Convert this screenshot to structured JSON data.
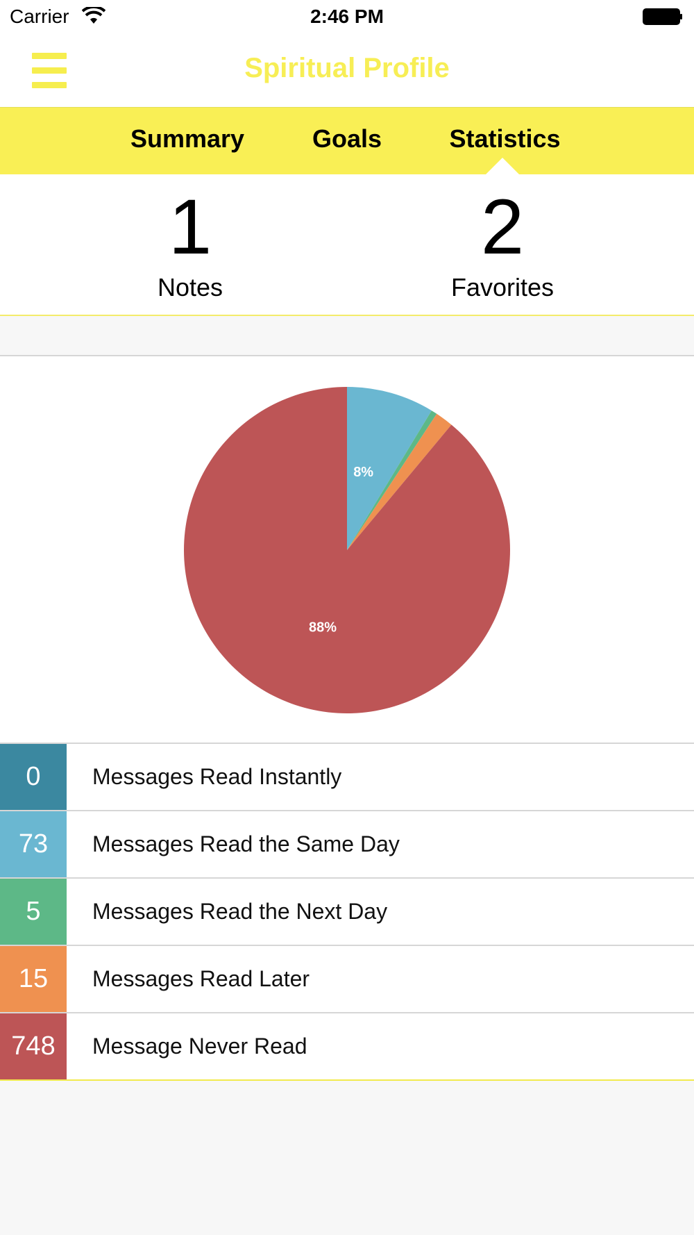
{
  "status_bar": {
    "carrier": "Carrier",
    "time": "2:46 PM",
    "wifi_icon": "wifi-icon",
    "battery_icon": "battery-icon"
  },
  "nav": {
    "title": "Spiritual Profile",
    "menu_icon": "hamburger-menu-icon",
    "title_color": "#f7ee55"
  },
  "tabs": [
    {
      "label": "Summary",
      "selected": false
    },
    {
      "label": "Goals",
      "selected": false
    },
    {
      "label": "Statistics",
      "selected": true
    }
  ],
  "counts": {
    "notes": {
      "value": "1",
      "label": "Notes"
    },
    "favorites": {
      "value": "2",
      "label": "Favorites"
    }
  },
  "chart_data": {
    "type": "pie",
    "slices": [
      {
        "label": "Messages Read Instantly",
        "value": 0,
        "color": "#3b88a0"
      },
      {
        "label": "Messages Read the Same Day",
        "value": 73,
        "color": "#6ab7d1"
      },
      {
        "label": "Messages Read the Next Day",
        "value": 5,
        "color": "#5db887"
      },
      {
        "label": "Messages Read Later",
        "value": 15,
        "color": "#ef9150"
      },
      {
        "label": "Message Never Read",
        "value": 748,
        "color": "#bd5556"
      }
    ],
    "data_labels": [
      {
        "slice": "Messages Read the Same Day",
        "text": "8%"
      },
      {
        "slice": "Message Never Read",
        "text": "88%"
      }
    ]
  },
  "legend": [
    {
      "count": "0",
      "label": "Messages Read Instantly",
      "color": "#3b88a0"
    },
    {
      "count": "73",
      "label": "Messages Read the Same Day",
      "color": "#6ab7d1"
    },
    {
      "count": "5",
      "label": "Messages Read the Next Day",
      "color": "#5db887"
    },
    {
      "count": "15",
      "label": "Messages Read Later",
      "color": "#ef9150"
    },
    {
      "count": "748",
      "label": "Message Never Read",
      "color": "#bd5556"
    }
  ]
}
